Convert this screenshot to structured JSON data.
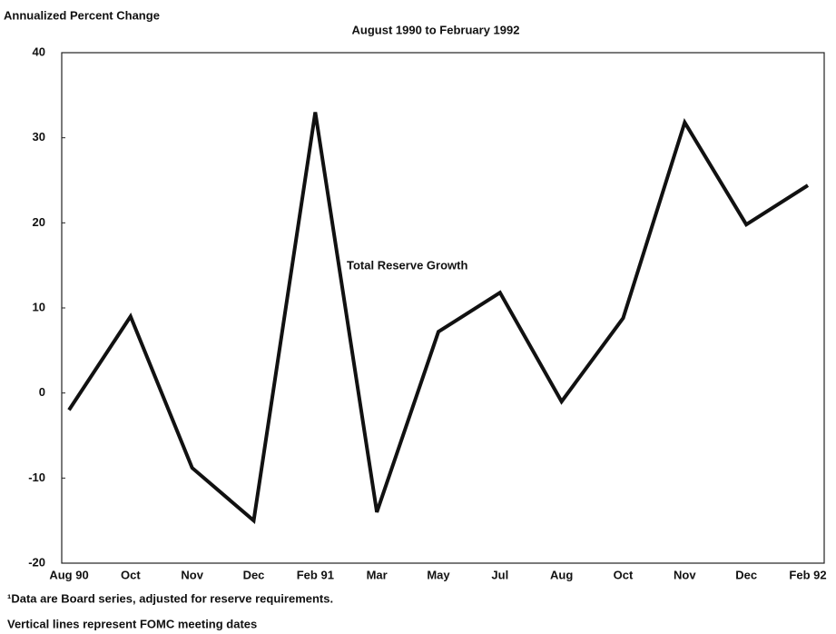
{
  "chart_data": {
    "type": "line",
    "title": "August 1990 to February 1992",
    "y_axis_label": "Annualized Percent Change",
    "categories": [
      "Aug 90",
      "Oct",
      "Nov",
      "Dec",
      "Feb 91",
      "Mar",
      "May",
      "Jul",
      "Aug",
      "Oct",
      "Nov",
      "Dec",
      "Feb 92"
    ],
    "series": [
      {
        "name": "Total Reserve Growth",
        "color": "#111111",
        "values": [
          -2.0,
          9.0,
          -8.8,
          -15.0,
          33.0,
          -14.0,
          7.2,
          11.8,
          -1.0,
          8.8,
          31.8,
          19.8,
          24.4
        ]
      }
    ],
    "ylim": [
      -20,
      40
    ],
    "yticks": [
      -20,
      -10,
      0,
      10,
      20,
      30,
      40
    ],
    "footnotes": [
      "¹Data are Board series, adjusted for reserve requirements.",
      "Vertical lines represent FOMC meeting dates"
    ]
  }
}
